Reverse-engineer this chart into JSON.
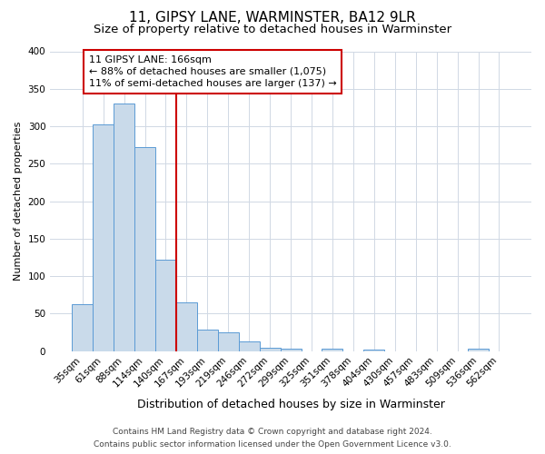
{
  "title": "11, GIPSY LANE, WARMINSTER, BA12 9LR",
  "subtitle": "Size of property relative to detached houses in Warminster",
  "xlabel": "Distribution of detached houses by size in Warminster",
  "ylabel": "Number of detached properties",
  "bar_labels": [
    "35sqm",
    "61sqm",
    "88sqm",
    "114sqm",
    "140sqm",
    "167sqm",
    "193sqm",
    "219sqm",
    "246sqm",
    "272sqm",
    "299sqm",
    "325sqm",
    "351sqm",
    "378sqm",
    "404sqm",
    "430sqm",
    "457sqm",
    "483sqm",
    "509sqm",
    "536sqm",
    "562sqm"
  ],
  "bar_values": [
    62,
    302,
    330,
    272,
    122,
    65,
    29,
    25,
    13,
    5,
    3,
    0,
    3,
    0,
    2,
    0,
    0,
    0,
    0,
    3,
    0
  ],
  "bar_color": "#c9daea",
  "bar_edge_color": "#5b9bd5",
  "highlight_line_index": 5,
  "annotation_text": "11 GIPSY LANE: 166sqm\n← 88% of detached houses are smaller (1,075)\n11% of semi-detached houses are larger (137) →",
  "annotation_box_color": "#ffffff",
  "annotation_box_edge_color": "#cc0000",
  "vline_color": "#cc0000",
  "ylim": [
    0,
    400
  ],
  "yticks": [
    0,
    50,
    100,
    150,
    200,
    250,
    300,
    350,
    400
  ],
  "footer_line1": "Contains HM Land Registry data © Crown copyright and database right 2024.",
  "footer_line2": "Contains public sector information licensed under the Open Government Licence v3.0.",
  "bg_color": "#ffffff",
  "grid_color": "#d0d8e4",
  "title_fontsize": 11,
  "subtitle_fontsize": 9.5,
  "xlabel_fontsize": 9,
  "ylabel_fontsize": 8,
  "tick_fontsize": 7.5,
  "annotation_fontsize": 8,
  "footer_fontsize": 6.5
}
